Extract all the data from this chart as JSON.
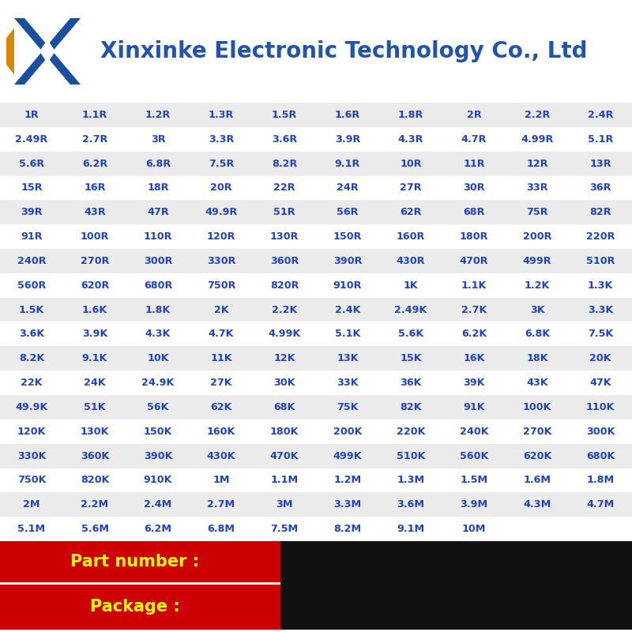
{
  "title": "Xinxinke Electronic Technology Co., Ltd",
  "title_color": "#2255aa",
  "bg_color": "#ffffff",
  "table_bg_odd": "#ebebeb",
  "table_bg_even": "#ffffff",
  "text_color": "#2244bb",
  "rows": [
    [
      "1R",
      "1.1R",
      "1.2R",
      "1.3R",
      "1.5R",
      "1.6R",
      "1.8R",
      "2R",
      "2.2R",
      "2.4R"
    ],
    [
      "2.49R",
      "2.7R",
      "3R",
      "3.3R",
      "3.6R",
      "3.9R",
      "4.3R",
      "4.7R",
      "4.99R",
      "5.1R"
    ],
    [
      "5.6R",
      "6.2R",
      "6.8R",
      "7.5R",
      "8.2R",
      "9.1R",
      "10R",
      "11R",
      "12R",
      "13R"
    ],
    [
      "15R",
      "16R",
      "18R",
      "20R",
      "22R",
      "24R",
      "27R",
      "30R",
      "33R",
      "36R"
    ],
    [
      "39R",
      "43R",
      "47R",
      "49.9R",
      "51R",
      "56R",
      "62R",
      "68R",
      "75R",
      "82R"
    ],
    [
      "91R",
      "100R",
      "110R",
      "120R",
      "130R",
      "150R",
      "160R",
      "180R",
      "200R",
      "220R"
    ],
    [
      "240R",
      "270R",
      "300R",
      "330R",
      "360R",
      "390R",
      "430R",
      "470R",
      "499R",
      "510R"
    ],
    [
      "560R",
      "620R",
      "680R",
      "750R",
      "820R",
      "910R",
      "1K",
      "1.1K",
      "1.2K",
      "1.3K"
    ],
    [
      "1.5K",
      "1.6K",
      "1.8K",
      "2K",
      "2.2K",
      "2.4K",
      "2.49K",
      "2.7K",
      "3K",
      "3.3K"
    ],
    [
      "3.6K",
      "3.9K",
      "4.3K",
      "4.7K",
      "4.99K",
      "5.1K",
      "5.6K",
      "6.2K",
      "6.8K",
      "7.5K"
    ],
    [
      "8.2K",
      "9.1K",
      "10K",
      "11K",
      "12K",
      "13K",
      "15K",
      "16K",
      "18K",
      "20K"
    ],
    [
      "22K",
      "24K",
      "24.9K",
      "27K",
      "30K",
      "33K",
      "36K",
      "39K",
      "43K",
      "47K"
    ],
    [
      "49.9K",
      "51K",
      "56K",
      "62K",
      "68K",
      "75K",
      "82K",
      "91K",
      "100K",
      "110K"
    ],
    [
      "120K",
      "130K",
      "150K",
      "160K",
      "180K",
      "200K",
      "220K",
      "240K",
      "270K",
      "300K"
    ],
    [
      "330K",
      "360K",
      "390K",
      "430K",
      "470K",
      "499K",
      "510K",
      "560K",
      "620K",
      "680K"
    ],
    [
      "750K",
      "820K",
      "910K",
      "1M",
      "1.1M",
      "1.2M",
      "1.3M",
      "1.5M",
      "1.6M",
      "1.8M"
    ],
    [
      "2M",
      "2.2M",
      "2.4M",
      "2.7M",
      "3M",
      "3.3M",
      "3.6M",
      "3.9M",
      "4.3M",
      "4.7M"
    ],
    [
      "5.1M",
      "5.6M",
      "6.2M",
      "6.8M",
      "7.5M",
      "8.2M",
      "9.1M",
      "10M",
      "",
      ""
    ]
  ],
  "bottom_labels": [
    "Part number :",
    "Package :"
  ],
  "bottom_bg": "#cc0000",
  "bottom_text_color": "#ffff00",
  "bottom_right_bg": "#111111",
  "logo_x_color": "#1a4fa0",
  "logo_accent_color": "#d4880a"
}
